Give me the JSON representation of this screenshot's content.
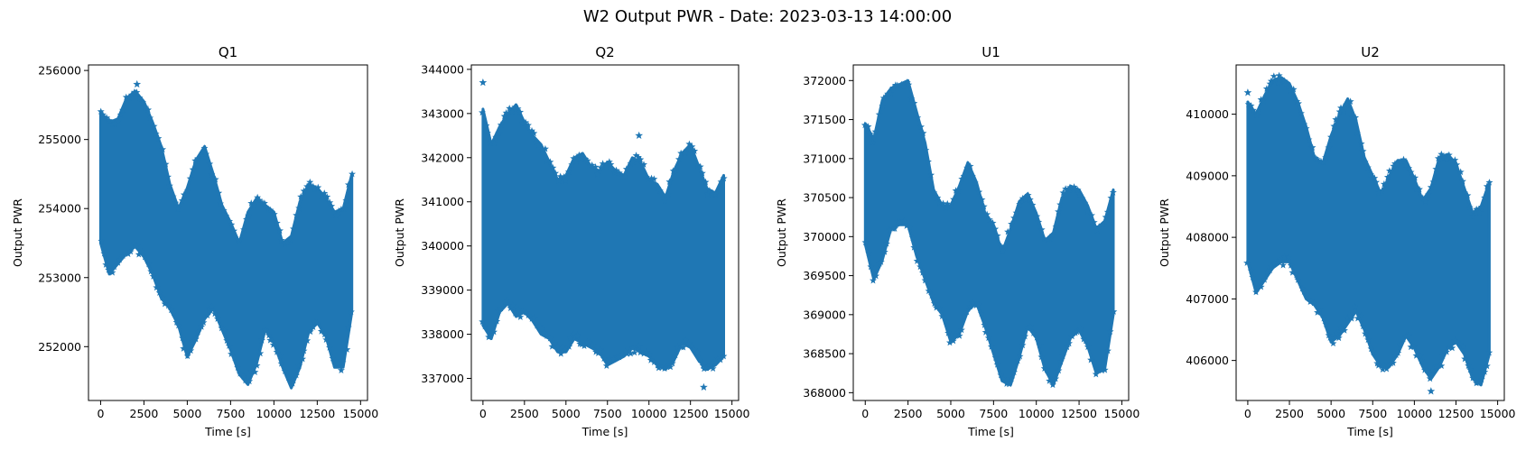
{
  "figure": {
    "title": "W2 Output PWR - Date: 2023-03-13 14:00:00"
  },
  "chart_data": [
    {
      "type": "scatter",
      "title": "Q1",
      "xlabel": "Time [s]",
      "ylabel": "Output PWR",
      "color": "#1f77b4",
      "marker": "star",
      "xlim": [
        -700,
        15400
      ],
      "ylim": [
        251220,
        256080
      ],
      "xticks": [
        0,
        2500,
        5000,
        7500,
        10000,
        12500,
        15000
      ],
      "xtick_labels": [
        "0",
        "2500",
        "5000",
        "7500",
        "10000",
        "12500",
        "15000"
      ],
      "yticks": [
        252000,
        253000,
        254000,
        255000,
        256000
      ],
      "ytick_labels": [
        "252000",
        "253000",
        "254000",
        "255000",
        "256000"
      ],
      "x": [
        0,
        500,
        1000,
        1500,
        2000,
        2500,
        3000,
        3500,
        4000,
        4500,
        5000,
        5500,
        6000,
        6500,
        7000,
        7500,
        8000,
        8500,
        9000,
        9500,
        10000,
        10500,
        11000,
        11500,
        12000,
        12500,
        13000,
        13500,
        14000,
        14500
      ],
      "upper": [
        255400,
        255250,
        255300,
        255600,
        255700,
        255550,
        255250,
        254900,
        254350,
        254000,
        254300,
        254700,
        254900,
        254500,
        254050,
        253800,
        253500,
        253950,
        254150,
        254050,
        253950,
        253500,
        253600,
        254100,
        254350,
        254300,
        254150,
        253950,
        254000,
        254500
      ],
      "lower": [
        253500,
        253050,
        253200,
        253350,
        253450,
        253300,
        253050,
        252700,
        252550,
        252300,
        251850,
        252100,
        252400,
        252550,
        252250,
        251950,
        251600,
        251450,
        251750,
        252250,
        252050,
        251700,
        251400,
        251700,
        252200,
        252350,
        252150,
        251700,
        251700,
        252500
      ],
      "outliers": [
        {
          "x": 2100,
          "y": 255800
        }
      ]
    },
    {
      "type": "scatter",
      "title": "Q2",
      "xlabel": "Time [s]",
      "ylabel": "Output PWR",
      "color": "#1f77b4",
      "marker": "star",
      "xlim": [
        -700,
        15400
      ],
      "ylim": [
        336500,
        344100
      ],
      "xticks": [
        0,
        2500,
        5000,
        7500,
        10000,
        12500,
        15000
      ],
      "xtick_labels": [
        "0",
        "2500",
        "5000",
        "7500",
        "10000",
        "12500",
        "15000"
      ],
      "yticks": [
        337000,
        338000,
        339000,
        340000,
        341000,
        342000,
        343000,
        344000
      ],
      "ytick_labels": [
        "337000",
        "338000",
        "339000",
        "340000",
        "341000",
        "342000",
        "343000",
        "344000"
      ],
      "x": [
        0,
        500,
        1000,
        1500,
        2000,
        2500,
        3000,
        3500,
        4000,
        4500,
        5000,
        5500,
        6000,
        6500,
        7000,
        7500,
        8000,
        8500,
        9000,
        9500,
        10000,
        10500,
        11000,
        11500,
        12000,
        12500,
        13000,
        13500,
        14000,
        14500
      ],
      "upper": [
        343100,
        342300,
        342700,
        343000,
        343200,
        342800,
        342500,
        342300,
        341900,
        341500,
        341600,
        342000,
        342100,
        341800,
        341700,
        341900,
        341700,
        341600,
        342000,
        341900,
        341500,
        341400,
        341100,
        341700,
        342100,
        342300,
        341800,
        341300,
        341200,
        341600
      ],
      "lower": [
        338200,
        337900,
        338500,
        338700,
        338400,
        338500,
        338300,
        338000,
        337900,
        337600,
        337600,
        337900,
        337800,
        337700,
        337600,
        337300,
        337400,
        337500,
        337700,
        337600,
        337500,
        337300,
        337200,
        337400,
        337800,
        337700,
        337400,
        337200,
        337300,
        337500
      ],
      "outliers": [
        {
          "x": 0,
          "y": 343700
        },
        {
          "x": 9400,
          "y": 342500
        },
        {
          "x": 13300,
          "y": 336800
        }
      ]
    },
    {
      "type": "scatter",
      "title": "U1",
      "xlabel": "Time [s]",
      "ylabel": "Output PWR",
      "color": "#1f77b4",
      "marker": "star",
      "xlim": [
        -700,
        15400
      ],
      "ylim": [
        367900,
        372200
      ],
      "xticks": [
        0,
        2500,
        5000,
        7500,
        10000,
        12500,
        15000
      ],
      "xtick_labels": [
        "0",
        "2500",
        "5000",
        "7500",
        "10000",
        "12500",
        "15000"
      ],
      "yticks": [
        368000,
        368500,
        369000,
        369500,
        370000,
        370500,
        371000,
        371500,
        372000
      ],
      "ytick_labels": [
        "368000",
        "368500",
        "369000",
        "369500",
        "370000",
        "370500",
        "371000",
        "371500",
        "372000"
      ],
      "x": [
        0,
        500,
        1000,
        1500,
        2000,
        2500,
        3000,
        3500,
        4000,
        4500,
        5000,
        5500,
        6000,
        6500,
        7000,
        7500,
        8000,
        8500,
        9000,
        9500,
        10000,
        10500,
        11000,
        11500,
        12000,
        12500,
        13000,
        13500,
        14000,
        14500
      ],
      "upper": [
        371450,
        371250,
        371750,
        371900,
        371950,
        372000,
        371600,
        371200,
        370600,
        370400,
        370400,
        370650,
        370950,
        370700,
        370300,
        370150,
        369800,
        370100,
        370450,
        370550,
        370300,
        369950,
        370050,
        370500,
        370650,
        370600,
        370400,
        370100,
        370200,
        370600
      ],
      "lower": [
        369900,
        369450,
        369700,
        370100,
        370150,
        370150,
        369750,
        369450,
        369150,
        369000,
        368650,
        368750,
        369050,
        369150,
        368850,
        368500,
        368150,
        368100,
        368450,
        368850,
        368700,
        368300,
        368100,
        368400,
        368700,
        368800,
        368600,
        368250,
        368300,
        369000
      ],
      "outliers": []
    },
    {
      "type": "scatter",
      "title": "U2",
      "xlabel": "Time [s]",
      "ylabel": "Output PWR",
      "color": "#1f77b4",
      "marker": "star",
      "xlim": [
        -700,
        15400
      ],
      "ylim": [
        405350,
        410800
      ],
      "xticks": [
        0,
        2500,
        5000,
        7500,
        10000,
        12500,
        15000
      ],
      "xtick_labels": [
        "0",
        "2500",
        "5000",
        "7500",
        "10000",
        "12500",
        "15000"
      ],
      "yticks": [
        406000,
        407000,
        408000,
        409000,
        410000
      ],
      "ytick_labels": [
        "406000",
        "407000",
        "408000",
        "409000",
        "410000"
      ],
      "x": [
        0,
        500,
        1000,
        1500,
        2000,
        2500,
        3000,
        3500,
        4000,
        4500,
        5000,
        5500,
        6000,
        6500,
        7000,
        7500,
        8000,
        8500,
        9000,
        9500,
        10000,
        10500,
        11000,
        11500,
        12000,
        12500,
        13000,
        13500,
        14000,
        14500
      ],
      "upper": [
        410200,
        410000,
        410300,
        410550,
        410600,
        410500,
        410200,
        409800,
        409300,
        409200,
        409650,
        410000,
        410250,
        409900,
        409300,
        409000,
        408700,
        409000,
        409250,
        409250,
        408950,
        408600,
        408800,
        409300,
        409350,
        409200,
        408800,
        408400,
        408500,
        408900
      ],
      "lower": [
        407600,
        407100,
        407300,
        407500,
        407600,
        407600,
        407300,
        407000,
        406900,
        406700,
        406300,
        406400,
        406600,
        406800,
        406500,
        406100,
        405900,
        405900,
        406100,
        406400,
        406200,
        405900,
        405700,
        405900,
        406200,
        406300,
        406100,
        405700,
        405600,
        406100
      ],
      "outliers": [
        {
          "x": 0,
          "y": 410350
        },
        {
          "x": 11000,
          "y": 405500
        }
      ]
    }
  ]
}
